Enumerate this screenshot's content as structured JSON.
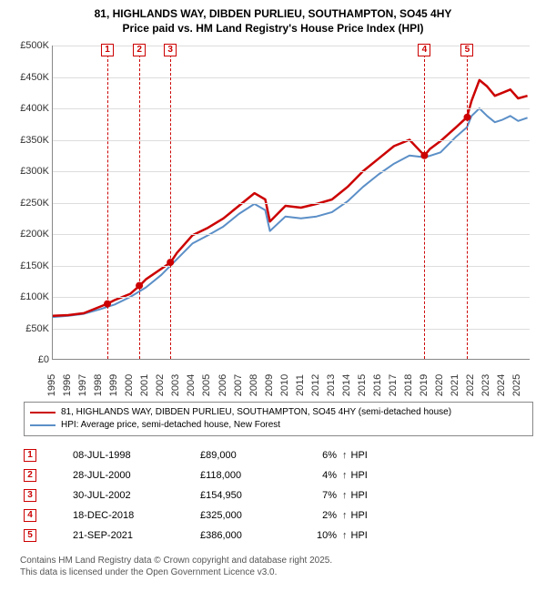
{
  "title_line1": "81, HIGHLANDS WAY, DIBDEN PURLIEU, SOUTHAMPTON, SO45 4HY",
  "title_line2": "Price paid vs. HM Land Registry's House Price Index (HPI)",
  "chart": {
    "type": "line",
    "background_color": "#ffffff",
    "grid_color": "#dddddd",
    "axis_color": "#888888",
    "ylim": [
      0,
      500000
    ],
    "ytick_step": 50000,
    "yticks": [
      "£0",
      "£50K",
      "£100K",
      "£150K",
      "£200K",
      "£250K",
      "£300K",
      "£350K",
      "£400K",
      "£450K",
      "£500K"
    ],
    "xlim": [
      1995,
      2025.8
    ],
    "xticks": [
      1995,
      1996,
      1997,
      1998,
      1999,
      2000,
      2001,
      2002,
      2003,
      2004,
      2005,
      2006,
      2007,
      2008,
      2009,
      2010,
      2011,
      2012,
      2013,
      2014,
      2015,
      2016,
      2017,
      2018,
      2019,
      2020,
      2021,
      2022,
      2023,
      2024,
      2025
    ],
    "series": [
      {
        "name": "property",
        "label": "81, HIGHLANDS WAY, DIBDEN PURLIEU, SOUTHAMPTON, SO45 4HY (semi-detached house)",
        "color": "#cc0000",
        "line_width": 2.5,
        "points": [
          [
            1995,
            70000
          ],
          [
            1996,
            71000
          ],
          [
            1997,
            74000
          ],
          [
            1998.5,
            89000
          ],
          [
            1999,
            95000
          ],
          [
            2000,
            105000
          ],
          [
            2000.6,
            118000
          ],
          [
            2001,
            128000
          ],
          [
            2002.6,
            154950
          ],
          [
            2003,
            170000
          ],
          [
            2004,
            198000
          ],
          [
            2005,
            210000
          ],
          [
            2006,
            225000
          ],
          [
            2007,
            245000
          ],
          [
            2008,
            265000
          ],
          [
            2008.7,
            255000
          ],
          [
            2009,
            220000
          ],
          [
            2010,
            245000
          ],
          [
            2011,
            242000
          ],
          [
            2012,
            248000
          ],
          [
            2013,
            255000
          ],
          [
            2014,
            275000
          ],
          [
            2015,
            300000
          ],
          [
            2016,
            320000
          ],
          [
            2017,
            340000
          ],
          [
            2018,
            350000
          ],
          [
            2018.96,
            325000
          ],
          [
            2019.3,
            335000
          ],
          [
            2020,
            348000
          ],
          [
            2021,
            370000
          ],
          [
            2021.7,
            386000
          ],
          [
            2022,
            412000
          ],
          [
            2022.5,
            445000
          ],
          [
            2023,
            435000
          ],
          [
            2023.5,
            420000
          ],
          [
            2024,
            425000
          ],
          [
            2024.5,
            430000
          ],
          [
            2025,
            416000
          ],
          [
            2025.6,
            420000
          ]
        ]
      },
      {
        "name": "hpi",
        "label": "HPI: Average price, semi-detached house, New Forest",
        "color": "#5b8fc7",
        "line_width": 2,
        "points": [
          [
            1995,
            68000
          ],
          [
            1996,
            70000
          ],
          [
            1997,
            73000
          ],
          [
            1998,
            80000
          ],
          [
            1999,
            88000
          ],
          [
            2000,
            100000
          ],
          [
            2001,
            115000
          ],
          [
            2002,
            135000
          ],
          [
            2003,
            160000
          ],
          [
            2004,
            185000
          ],
          [
            2005,
            198000
          ],
          [
            2006,
            212000
          ],
          [
            2007,
            232000
          ],
          [
            2008,
            248000
          ],
          [
            2008.7,
            238000
          ],
          [
            2009,
            205000
          ],
          [
            2010,
            228000
          ],
          [
            2011,
            225000
          ],
          [
            2012,
            228000
          ],
          [
            2013,
            235000
          ],
          [
            2014,
            252000
          ],
          [
            2015,
            275000
          ],
          [
            2016,
            295000
          ],
          [
            2017,
            312000
          ],
          [
            2018,
            325000
          ],
          [
            2019,
            322000
          ],
          [
            2020,
            330000
          ],
          [
            2021,
            355000
          ],
          [
            2021.7,
            370000
          ],
          [
            2022,
            388000
          ],
          [
            2022.5,
            400000
          ],
          [
            2023,
            388000
          ],
          [
            2023.5,
            378000
          ],
          [
            2024,
            382000
          ],
          [
            2024.5,
            388000
          ],
          [
            2025,
            380000
          ],
          [
            2025.6,
            385000
          ]
        ]
      }
    ],
    "sale_markers": [
      {
        "n": "1",
        "year": 1998.52
      },
      {
        "n": "2",
        "year": 2000.58
      },
      {
        "n": "3",
        "year": 2002.58
      },
      {
        "n": "4",
        "year": 2018.96
      },
      {
        "n": "5",
        "year": 2021.72
      }
    ],
    "sale_dots": [
      {
        "year": 1998.52,
        "value": 89000
      },
      {
        "year": 2000.58,
        "value": 118000
      },
      {
        "year": 2002.58,
        "value": 154950
      },
      {
        "year": 2018.96,
        "value": 325000
      },
      {
        "year": 2021.72,
        "value": 386000
      }
    ],
    "dot_color": "#cc0000",
    "dot_radius": 4
  },
  "legend_title_fontsize": 10,
  "sales": [
    {
      "n": "1",
      "date": "08-JUL-1998",
      "price": "£89,000",
      "pct": "6%",
      "dir": "↑",
      "vs": "HPI"
    },
    {
      "n": "2",
      "date": "28-JUL-2000",
      "price": "£118,000",
      "pct": "4%",
      "dir": "↑",
      "vs": "HPI"
    },
    {
      "n": "3",
      "date": "30-JUL-2002",
      "price": "£154,950",
      "pct": "7%",
      "dir": "↑",
      "vs": "HPI"
    },
    {
      "n": "4",
      "date": "18-DEC-2018",
      "price": "£325,000",
      "pct": "2%",
      "dir": "↑",
      "vs": "HPI"
    },
    {
      "n": "5",
      "date": "21-SEP-2021",
      "price": "£386,000",
      "pct": "10%",
      "dir": "↑",
      "vs": "HPI"
    }
  ],
  "footer_line1": "Contains HM Land Registry data © Crown copyright and database right 2025.",
  "footer_line2": "This data is licensed under the Open Government Licence v3.0."
}
